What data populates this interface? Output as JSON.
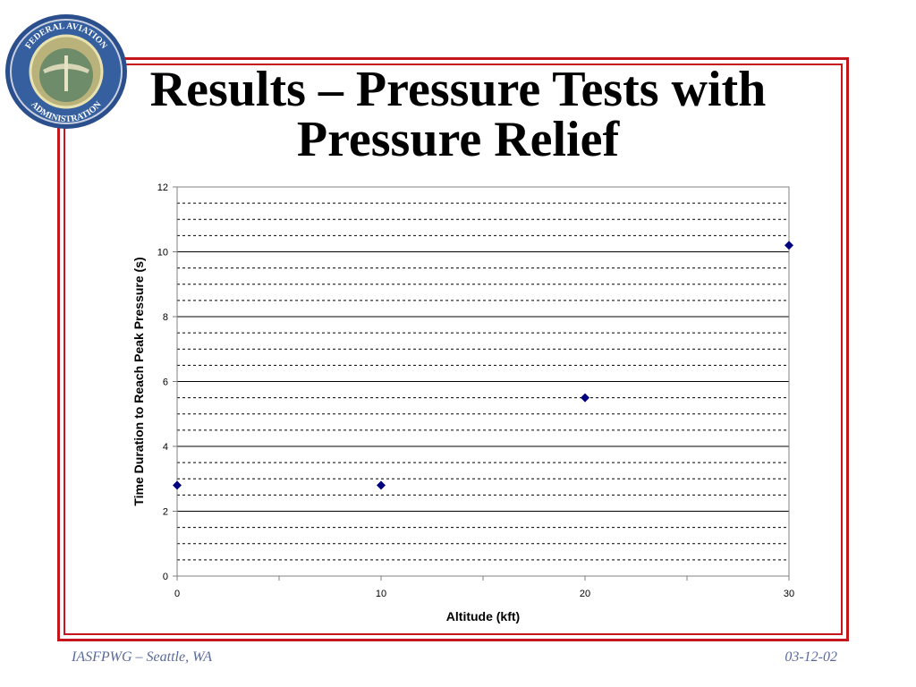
{
  "slide": {
    "title_line1": "Results – Pressure Tests with",
    "title_line2": "Pressure Relief",
    "footer_left": "IASFPWG – Seattle, WA",
    "footer_right": "03-12-02",
    "logo_text": "FEDERAL AVIATION ADMINISTRATION"
  },
  "colors": {
    "frame": "#c4161c",
    "marker": "#00007f",
    "footer": "#5a6a9a"
  },
  "chart_data": {
    "type": "scatter",
    "title": "",
    "xlabel": "Altitude (kft)",
    "ylabel": "Time Duration to Reach Peak Pressure (s)",
    "xlim": [
      0,
      30
    ],
    "ylim": [
      0,
      12
    ],
    "x_ticks": [
      0,
      10,
      20,
      30
    ],
    "y_ticks": [
      0,
      2,
      4,
      6,
      8,
      10,
      12
    ],
    "x_minor_step": 5,
    "y_minor_step": 0.5,
    "grid": "major solid, minor dashed horizontal",
    "legend": "none",
    "series": [
      {
        "marker": "diamond",
        "x": [
          0,
          10,
          20,
          30
        ],
        "y": [
          2.8,
          2.8,
          5.5,
          10.2
        ]
      }
    ]
  }
}
